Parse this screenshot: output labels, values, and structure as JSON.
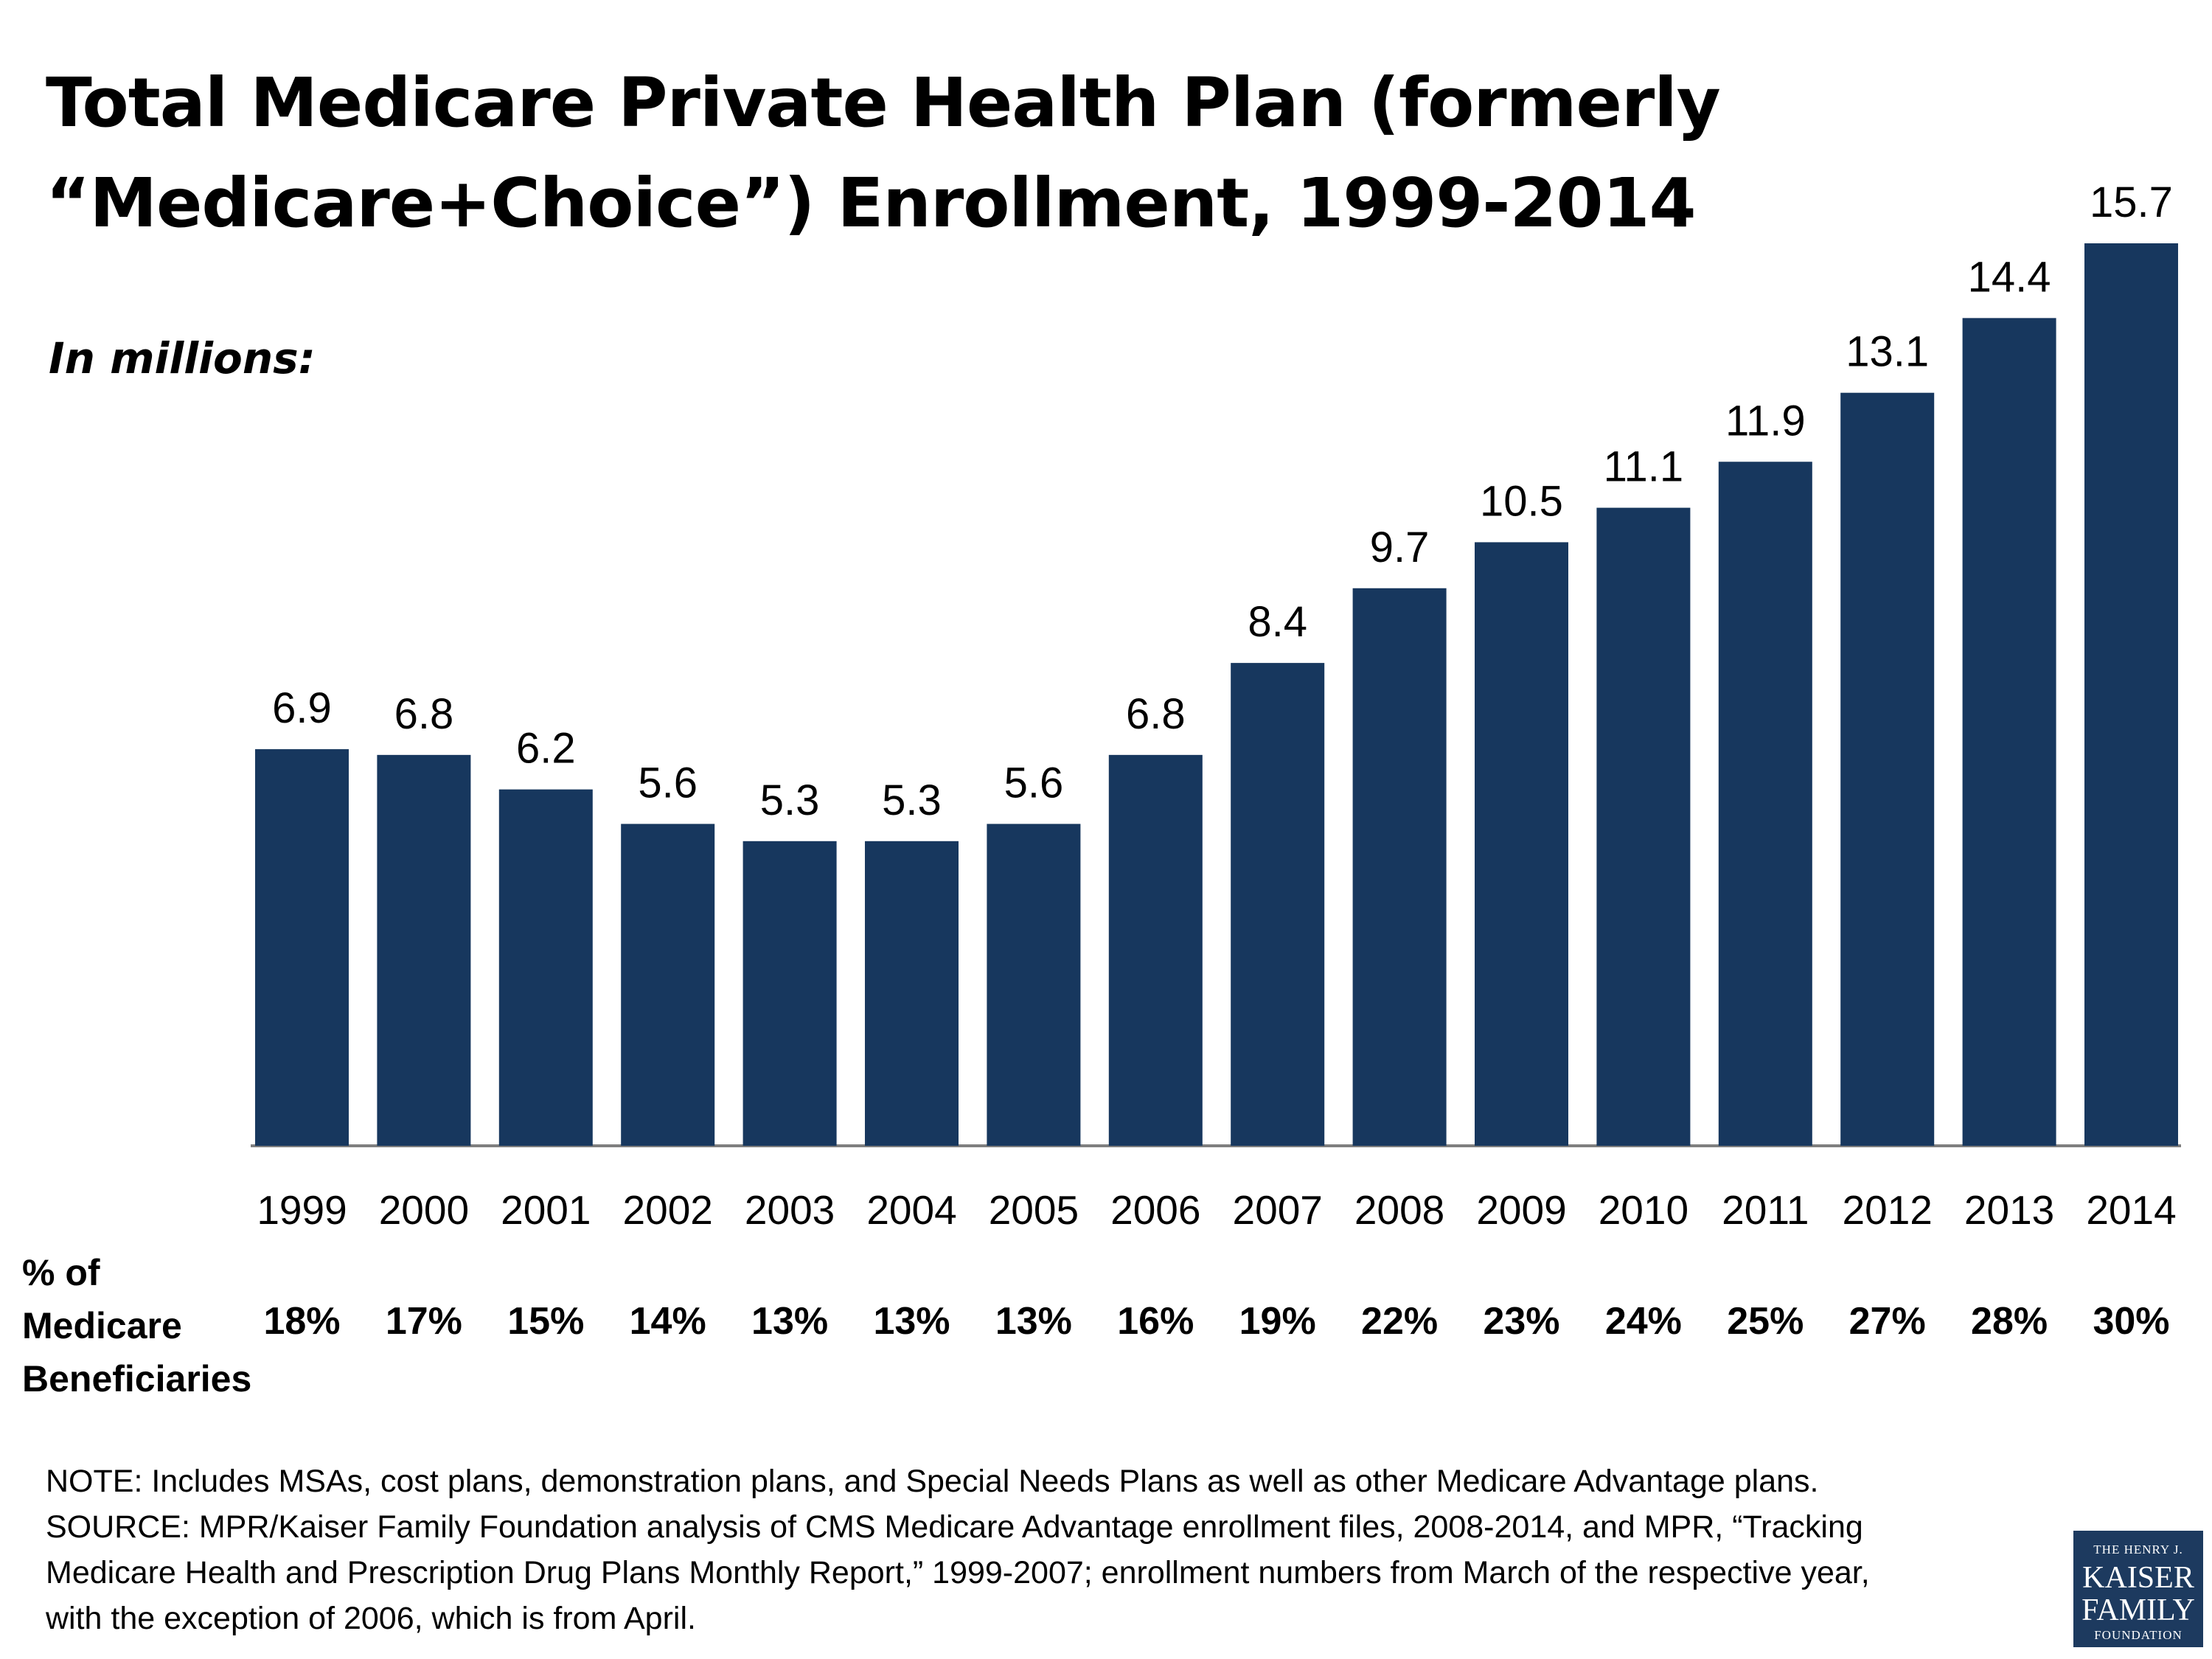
{
  "title_line1": "Total Medicare Private Health Plan (formerly",
  "title_line2": "“Medicare+Choice”) Enrollment, 1999-2014",
  "subtitle": "In millions:",
  "chart_data": {
    "type": "bar",
    "title": "Total Medicare Private Health Plan (formerly “Medicare+Choice”) Enrollment, 1999-2014",
    "ylabel": "In millions",
    "xlabel": "",
    "categories": [
      "1999",
      "2000",
      "2001",
      "2002",
      "2003",
      "2004",
      "2005",
      "2006",
      "2007",
      "2008",
      "2009",
      "2010",
      "2011",
      "2012",
      "2013",
      "2014"
    ],
    "values": [
      6.9,
      6.8,
      6.2,
      5.6,
      5.3,
      5.3,
      5.6,
      6.8,
      8.4,
      9.7,
      10.5,
      11.1,
      11.9,
      13.1,
      14.4,
      15.7
    ],
    "value_labels": [
      "6.9",
      "6.8",
      "6.2",
      "5.6",
      "5.3",
      "5.3",
      "5.6",
      "6.8",
      "8.4",
      "9.7",
      "10.5",
      "11.1",
      "11.9",
      "13.1",
      "14.4",
      "15.7"
    ],
    "ylim": [
      0,
      15.7
    ],
    "grid": false,
    "bar_color": "#17375e",
    "pct_label": "% of\nMedicare\nBeneficiaries",
    "pct_values": [
      "18%",
      "17%",
      "15%",
      "14%",
      "13%",
      "13%",
      "13%",
      "16%",
      "19%",
      "22%",
      "23%",
      "24%",
      "25%",
      "27%",
      "28%",
      "30%"
    ]
  },
  "notes": {
    "note": "NOTE:  Includes MSAs, cost plans, demonstration plans, and Special Needs Plans as well as other Medicare Advantage plans.",
    "source_line1": "SOURCE:  MPR/Kaiser Family Foundation analysis of CMS Medicare Advantage enrollment files, 2008-2014, and MPR, “Tracking",
    "source_line2": "Medicare Health and Prescription Drug Plans Monthly Report,” 1999-2007; enrollment numbers from March of the respective year,",
    "source_line3": "with the exception of 2006, which is from April."
  },
  "logo": {
    "line1": "THE HENRY J.",
    "line2": "KAISER",
    "line3": "FAMILY",
    "line4": "FOUNDATION"
  }
}
